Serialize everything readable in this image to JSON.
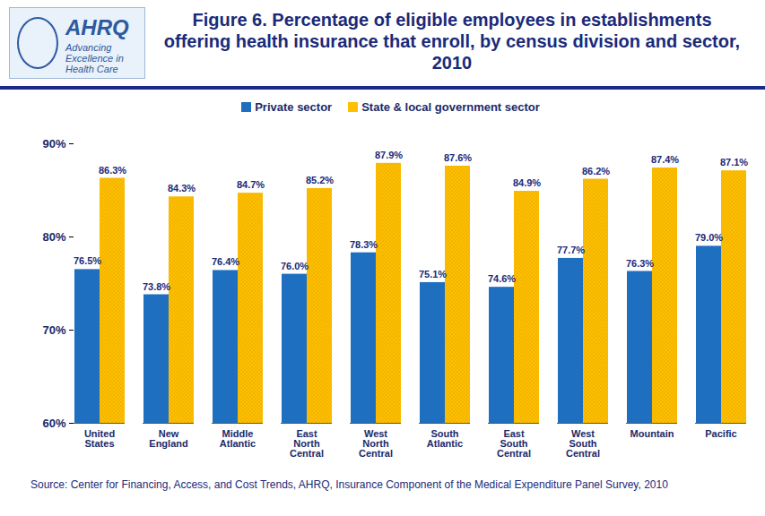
{
  "chart_data": {
    "type": "bar",
    "title": "Figure 6. Percentage of eligible employees in establishments offering health insurance that enroll, by census division and sector, 2010",
    "logo_text": "AHRQ",
    "logo_tagline": "Advancing Excellence in Health Care",
    "source": "Source: Center for Financing, Access, and Cost Trends, AHRQ, Insurance Component of the Medical Expenditure Panel Survey, 2010",
    "categories": [
      "United States",
      "New England",
      "Middle Atlantic",
      "East North Central",
      "West North Central",
      "South Atlantic",
      "East South Central",
      "West South Central",
      "Mountain",
      "Pacific"
    ],
    "series": [
      {
        "name": "Private sector",
        "color": "#1f6fc0",
        "values": [
          76.5,
          73.8,
          76.4,
          76.0,
          78.3,
          75.1,
          74.6,
          77.7,
          76.3,
          79.0
        ],
        "value_labels": [
          "76.5%",
          "73.8%",
          "76.4%",
          "76.0%",
          "78.3%",
          "75.1%",
          "74.6%",
          "77.7%",
          "76.3%",
          "79.0%"
        ]
      },
      {
        "name": "State & local government sector",
        "color": "#ffc000",
        "values": [
          86.3,
          84.3,
          84.7,
          85.2,
          87.9,
          87.6,
          84.9,
          86.2,
          87.4,
          87.1
        ],
        "value_labels": [
          "86.3%",
          "84.3%",
          "84.7%",
          "85.2%",
          "87.9%",
          "87.6%",
          "84.9%",
          "86.2%",
          "87.4%",
          "87.1%"
        ]
      }
    ],
    "ylim": [
      60,
      90
    ],
    "yticks": [
      {
        "value": 60,
        "label": "60%"
      },
      {
        "value": 70,
        "label": "70%"
      },
      {
        "value": 80,
        "label": "80%"
      },
      {
        "value": 90,
        "label": "90%"
      }
    ],
    "grid": false,
    "legend": "top",
    "data_labels": true
  }
}
